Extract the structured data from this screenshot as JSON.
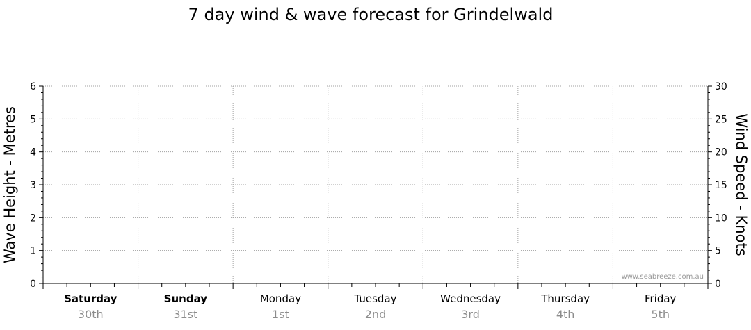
{
  "chart_data": {
    "type": "line",
    "title": "7 day wind & wave forecast for Grindelwald",
    "y_left": {
      "label": "Wave Height - Metres",
      "range": [
        0,
        6
      ],
      "ticks": [
        "0",
        "1",
        "2",
        "3",
        "4",
        "5",
        "6"
      ]
    },
    "y_right": {
      "label": "Wind Speed - Knots",
      "range": [
        0,
        30
      ],
      "ticks": [
        "0",
        "5",
        "10",
        "15",
        "20",
        "25",
        "30"
      ]
    },
    "days": [
      {
        "day": "Saturday",
        "date": "30th",
        "bold": true
      },
      {
        "day": "Sunday",
        "date": "31st",
        "bold": true
      },
      {
        "day": "Monday",
        "date": "1st",
        "bold": false
      },
      {
        "day": "Tuesday",
        "date": "2nd",
        "bold": false
      },
      {
        "day": "Wednesday",
        "date": "3rd",
        "bold": false
      },
      {
        "day": "Thursday",
        "date": "4th",
        "bold": false
      },
      {
        "day": "Friday",
        "date": "5th",
        "bold": false
      }
    ],
    "series": [],
    "grid": true,
    "watermark": "www.seabreeze.com.au"
  }
}
